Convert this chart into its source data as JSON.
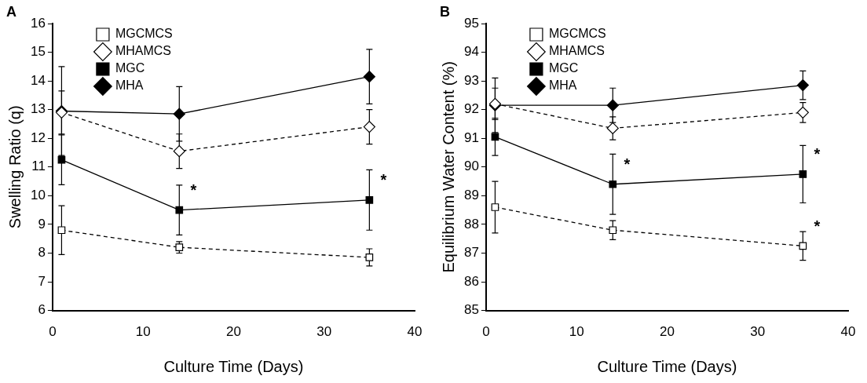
{
  "chart_data": [
    {
      "type": "line",
      "title": "A",
      "xlabel": "Culture Time (Days)",
      "ylabel": "Swelling Ratio (q)",
      "x": [
        1,
        14,
        35
      ],
      "xlim": [
        0,
        40
      ],
      "xticks": [
        0,
        10,
        20,
        30,
        40
      ],
      "ylim": [
        6,
        16
      ],
      "yticks": [
        6,
        7,
        8,
        9,
        10,
        11,
        12,
        13,
        14,
        15,
        16
      ],
      "grid": false,
      "legend": "top left",
      "series": [
        {
          "name": "MGCMCS",
          "color": "#000000",
          "marker": "square",
          "line_style": "dashed",
          "values": [
            8.8,
            8.2,
            7.85
          ],
          "errors": [
            0.85,
            0.2,
            0.3
          ]
        },
        {
          "name": "MHAMCS",
          "color": "#000000",
          "marker": "diamond",
          "line_style": "dashed",
          "values": [
            12.9,
            11.55,
            12.4
          ],
          "errors": [
            0.75,
            0.6,
            0.6
          ]
        },
        {
          "name": "MGC",
          "color": "#000000",
          "marker": "square",
          "line_style": "solid",
          "values": [
            11.25,
            9.5,
            9.85
          ],
          "errors": [
            0.87,
            0.87,
            1.05
          ],
          "value_labels": [
            null,
            "*",
            "*"
          ]
        },
        {
          "name": "MHA",
          "color": "#000000",
          "marker": "diamond",
          "line_style": "solid",
          "values": [
            12.95,
            12.85,
            14.15
          ],
          "errors": [
            1.55,
            0.95,
            0.95
          ]
        }
      ]
    },
    {
      "type": "line",
      "title": "B",
      "xlabel": "Culture Time (Days)",
      "ylabel": "Equilibrium Water Content (%)",
      "x": [
        1,
        14,
        35
      ],
      "xlim": [
        0,
        40
      ],
      "xticks": [
        0,
        10,
        20,
        30,
        40
      ],
      "ylim": [
        85,
        95
      ],
      "yticks": [
        85,
        86,
        87,
        88,
        89,
        90,
        91,
        92,
        93,
        94,
        95
      ],
      "grid": false,
      "legend": "top left",
      "series": [
        {
          "name": "MGCMCS",
          "color": "#000000",
          "marker": "square",
          "line_style": "dashed",
          "values": [
            88.6,
            87.8,
            87.25
          ],
          "errors": [
            0.9,
            0.33,
            0.5
          ],
          "value_labels": [
            null,
            null,
            "*"
          ]
        },
        {
          "name": "MHAMCS",
          "color": "#000000",
          "marker": "diamond",
          "line_style": "dashed",
          "values": [
            92.2,
            91.35,
            91.9
          ],
          "errors": [
            0.55,
            0.4,
            0.35
          ]
        },
        {
          "name": "MGC",
          "color": "#000000",
          "marker": "square",
          "line_style": "solid",
          "values": [
            91.05,
            89.4,
            89.75
          ],
          "errors": [
            0.65,
            1.05,
            1.0
          ],
          "value_labels": [
            null,
            "*",
            "*"
          ]
        },
        {
          "name": "MHA",
          "color": "#000000",
          "marker": "diamond",
          "line_style": "solid",
          "values": [
            92.15,
            92.15,
            92.85
          ],
          "errors": [
            0.95,
            0.6,
            0.5
          ]
        }
      ]
    }
  ]
}
